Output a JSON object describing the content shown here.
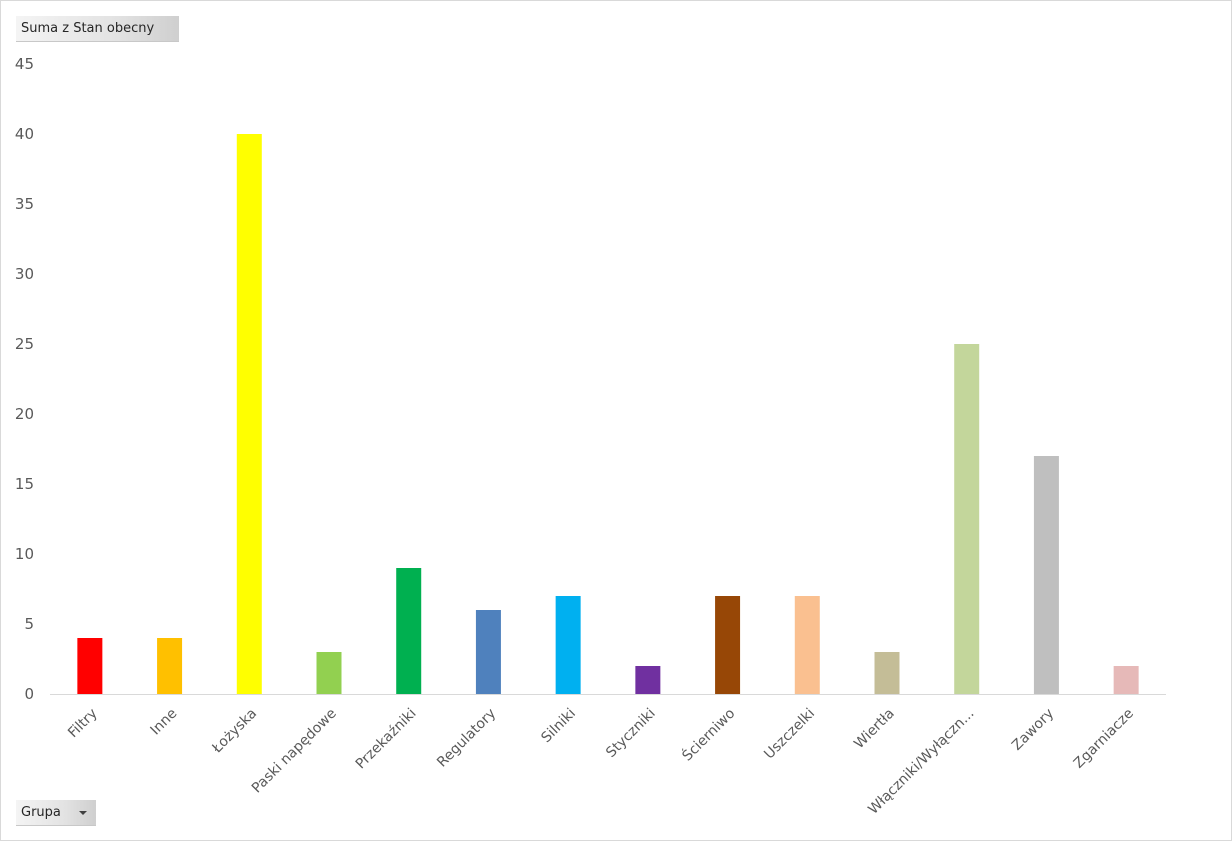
{
  "value_field_label": "Suma z Stan obecny",
  "axis_field_label": "Grupa",
  "chart_data": {
    "type": "bar",
    "title": "",
    "xlabel": "",
    "ylabel": "",
    "ylim": [
      0,
      45
    ],
    "y_ticks": [
      0,
      5,
      10,
      15,
      20,
      25,
      30,
      35,
      40,
      45
    ],
    "y_tick_labels": [
      "0",
      "5",
      "10",
      "15",
      "20",
      "25",
      "30",
      "35",
      "40",
      "45"
    ],
    "grid": false,
    "legend": "none",
    "categories": [
      "Filtry",
      "Inne",
      "Łożyska",
      "Paski napędowe",
      "Przekaźniki",
      "Regulatory",
      "Silniki",
      "Styczniki",
      "Ścierniwo",
      "Uszczelki",
      "Wiertła",
      "Włączniki/Wyłączn...",
      "Zawory",
      "Zgarniacze"
    ],
    "values": [
      4,
      4,
      40,
      3,
      9,
      6,
      7,
      2,
      7,
      7,
      3,
      25,
      17,
      2
    ],
    "colors": [
      "#ff0000",
      "#ffc000",
      "#ffff00",
      "#92d050",
      "#00b050",
      "#4f81bd",
      "#00b0f0",
      "#7030a0",
      "#974706",
      "#fac090",
      "#c4bd97",
      "#c3d69b",
      "#bfbfbf",
      "#e6b9b8"
    ]
  }
}
